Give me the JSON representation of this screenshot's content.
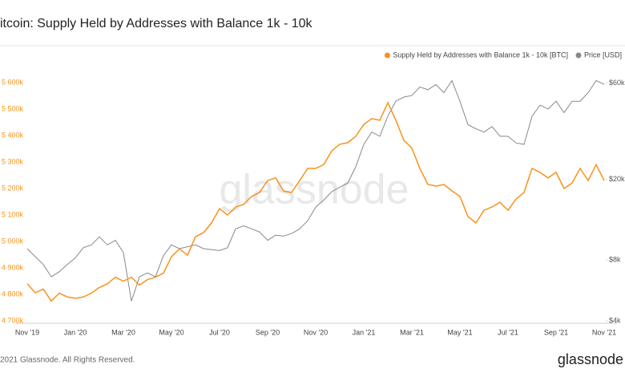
{
  "chart_data": {
    "type": "line",
    "title": "itcoin: Supply Held by Addresses with Balance 1k - 10k",
    "watermark": "glassnode",
    "footer": "2021 Glassnode. All Rights Reserved.",
    "brand": "glassnode",
    "categories": [
      "Nov '19",
      null,
      null,
      null,
      null,
      null,
      "Jan '20",
      null,
      null,
      null,
      null,
      null,
      "Mar '20",
      null,
      null,
      null,
      null,
      null,
      "May '20",
      null,
      null,
      null,
      null,
      null,
      "Jul '20",
      null,
      null,
      null,
      null,
      null,
      "Sep '20",
      null,
      null,
      null,
      null,
      null,
      "Nov '20",
      null,
      null,
      null,
      null,
      null,
      "Jan '21",
      null,
      null,
      null,
      null,
      null,
      "Mar '21",
      null,
      null,
      null,
      null,
      null,
      "May '21",
      null,
      null,
      null,
      null,
      null,
      "Jul '21",
      null,
      null,
      null,
      null,
      null,
      "Sep '21",
      null,
      null,
      null,
      null,
      null,
      "Nov '21"
    ],
    "series": [
      {
        "name": "Supply Held by Addresses with Balance 1k - 10k [BTC]",
        "color": "#f7931a",
        "values": [
          4840000,
          4806000,
          4820000,
          4775000,
          4805000,
          4790000,
          4785000,
          4790000,
          4805000,
          4826000,
          4840000,
          4865000,
          4850000,
          4865000,
          4835000,
          4856000,
          4865000,
          4880000,
          4942000,
          4972000,
          4948000,
          5018000,
          5033000,
          5070000,
          5124000,
          5100000,
          5130000,
          5140000,
          5170000,
          5185000,
          5230000,
          5240000,
          5190000,
          5185000,
          5230000,
          5276000,
          5276000,
          5290000,
          5342000,
          5367000,
          5373000,
          5397000,
          5442000,
          5464000,
          5458000,
          5524000,
          5458000,
          5382000,
          5352000,
          5276000,
          5215000,
          5209000,
          5215000,
          5191000,
          5170000,
          5094000,
          5070000,
          5118000,
          5130000,
          5148000,
          5118000,
          5160000,
          5185000,
          5276000,
          5261000,
          5240000,
          5261000,
          5200000,
          5221000,
          5276000,
          5230000,
          5290000,
          5230000
        ]
      },
      {
        "name": "Price [USD]",
        "color": "#888888",
        "axis": "y2",
        "values": [
          9100,
          8300,
          7600,
          6600,
          7000,
          7600,
          8200,
          9200,
          9500,
          10400,
          9500,
          10000,
          8700,
          5000,
          6600,
          6900,
          6600,
          8400,
          9500,
          9100,
          9300,
          9500,
          9100,
          9000,
          8900,
          9200,
          11400,
          11800,
          11400,
          11000,
          10000,
          10600,
          10500,
          10800,
          11400,
          12500,
          14600,
          15800,
          17400,
          18300,
          19200,
          23100,
          29800,
          34300,
          32700,
          41100,
          48700,
          51100,
          52000,
          57300,
          55500,
          58900,
          53700,
          61600,
          48700,
          37300,
          35600,
          34300,
          36500,
          32700,
          32700,
          30300,
          29800,
          41100,
          46600,
          44600,
          48700,
          42800,
          48700,
          48700,
          53700,
          61600,
          59000
        ]
      }
    ],
    "ylim": [
      4700000,
      5650000
    ],
    "yticks": [
      {
        "value": 4700000,
        "label": "4 700k"
      },
      {
        "value": 4800000,
        "label": "4 800k"
      },
      {
        "value": 4900000,
        "label": "4 900k"
      },
      {
        "value": 5000000,
        "label": "5 000k"
      },
      {
        "value": 5100000,
        "label": "5 100k"
      },
      {
        "value": 5200000,
        "label": "5 200k"
      },
      {
        "value": 5300000,
        "label": "5 300k"
      },
      {
        "value": 5400000,
        "label": "5 400k"
      },
      {
        "value": 5500000,
        "label": "5 500k"
      },
      {
        "value": 5600000,
        "label": "5 600k"
      }
    ],
    "y2lim": [
      4000,
      70000
    ],
    "y2log": true,
    "y2ticks": [
      {
        "value": 4000,
        "label": "$4k"
      },
      {
        "value": 8000,
        "label": "$8k"
      },
      {
        "value": 20000,
        "label": "$20k"
      },
      {
        "value": 60000,
        "label": "$60k"
      }
    ],
    "legend": "top-right"
  }
}
